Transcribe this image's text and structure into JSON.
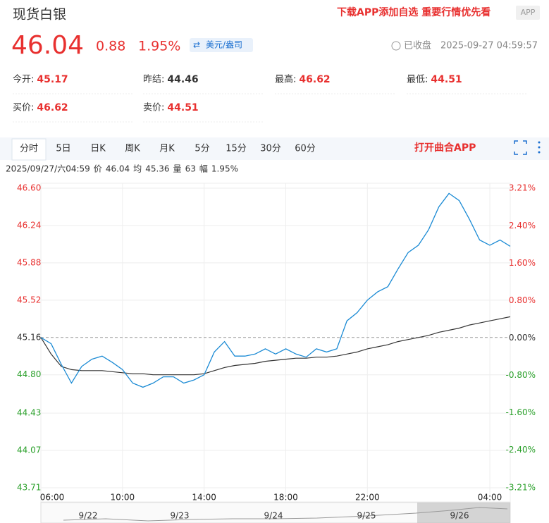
{
  "header": {
    "title": "现货白银",
    "price": "46.04",
    "change": "0.88",
    "change_pct": "1.95%",
    "unit": "美元/盎司",
    "status": "已收盘",
    "time": "2025-09-27 04:59:57",
    "promo": "下载APP添加自选 重要行情优先看",
    "app_tag": "APP"
  },
  "stats": [
    {
      "label": "今开:",
      "value": "45.17"
    },
    {
      "label": "昨结:",
      "value": "44.46"
    },
    {
      "label": "最高:",
      "value": "46.62"
    },
    {
      "label": "最低:",
      "value": "44.51"
    },
    {
      "label": "买价:",
      "value": "46.62"
    },
    {
      "label": "卖价:",
      "value": "44.51"
    }
  ],
  "tabs": [
    "分时",
    "5日",
    "日K",
    "周K",
    "月K",
    "5分",
    "15分",
    "30分",
    "60分"
  ],
  "open_app": "打开曲合APP",
  "info": {
    "time": "2025/09/27/六04:59",
    "price_label": "价",
    "price": "46.04",
    "avg_label": "均",
    "avg": "45.36",
    "vol_label": "量",
    "vol": "63",
    "pct_label": "幅",
    "pct": "1.95%"
  },
  "navigator": {
    "dates": [
      "9/22",
      "9/23",
      "9/24",
      "9/25",
      "9/26"
    ]
  },
  "chart_data": {
    "type": "line",
    "x": [
      "06:00",
      "06:30",
      "07:00",
      "07:30",
      "08:00",
      "08:30",
      "09:00",
      "09:30",
      "10:00",
      "10:30",
      "11:00",
      "11:30",
      "12:00",
      "12:30",
      "13:00",
      "13:30",
      "14:00",
      "14:30",
      "15:00",
      "15:30",
      "16:00",
      "16:30",
      "17:00",
      "17:30",
      "18:00",
      "18:30",
      "19:00",
      "19:30",
      "20:00",
      "20:30",
      "21:00",
      "21:30",
      "22:00",
      "22:30",
      "23:00",
      "23:30",
      "00:00",
      "00:30",
      "01:00",
      "01:30",
      "02:00",
      "02:30",
      "03:00",
      "03:30",
      "04:00",
      "04:30",
      "05:00"
    ],
    "series": [
      {
        "name": "价",
        "color": "#1a8ad4",
        "values": [
          45.16,
          45.1,
          44.9,
          44.72,
          44.88,
          44.95,
          44.98,
          44.92,
          44.85,
          44.72,
          44.68,
          44.72,
          44.78,
          44.78,
          44.72,
          44.75,
          44.8,
          45.02,
          45.12,
          44.98,
          44.98,
          45.0,
          45.05,
          45.0,
          45.05,
          45.0,
          44.97,
          45.05,
          45.02,
          45.05,
          45.32,
          45.4,
          45.52,
          45.6,
          45.65,
          45.82,
          45.98,
          46.05,
          46.2,
          46.42,
          46.55,
          46.48,
          46.3,
          46.1,
          46.05,
          46.1,
          46.04
        ]
      },
      {
        "name": "均",
        "color": "#333333",
        "values": [
          45.16,
          45.0,
          44.88,
          44.85,
          44.84,
          44.84,
          44.84,
          44.83,
          44.82,
          44.81,
          44.81,
          44.8,
          44.8,
          44.8,
          44.8,
          44.8,
          44.81,
          44.84,
          44.87,
          44.89,
          44.9,
          44.91,
          44.93,
          44.94,
          44.95,
          44.96,
          44.96,
          44.97,
          44.97,
          44.98,
          45.0,
          45.02,
          45.05,
          45.07,
          45.09,
          45.12,
          45.14,
          45.16,
          45.18,
          45.21,
          45.23,
          45.25,
          45.28,
          45.3,
          45.32,
          45.34,
          45.36
        ]
      }
    ],
    "xticks": [
      {
        "value": 0,
        "label": "06:00"
      },
      {
        "value": 8,
        "label": "10:00"
      },
      {
        "value": 16,
        "label": "14:00"
      },
      {
        "value": 24,
        "label": "18:00"
      },
      {
        "value": 32,
        "label": "22:00"
      },
      {
        "value": 44,
        "label": "04:00"
      }
    ],
    "ylim": [
      43.71,
      46.6
    ],
    "yticks": [
      43.71,
      44.07,
      44.43,
      {
        "value": 44.8,
        "label": "44.80"
      },
      45.16,
      45.52,
      45.88,
      46.24,
      {
        "value": 46.6,
        "label": "46.60"
      }
    ],
    "y2lim": [
      -3.21,
      3.21
    ],
    "y2ticks": [
      {
        "value": -3.21,
        "label": "-3.21%"
      },
      {
        "value": -2.4,
        "label": "-2.40%"
      },
      {
        "value": -1.6,
        "label": "-1.60%"
      },
      {
        "value": -0.8,
        "label": "-0.80%"
      },
      {
        "value": 0,
        "label": "0.00%"
      },
      {
        "value": 0.8,
        "label": "0.80%"
      },
      {
        "value": 1.6,
        "label": "1.60%"
      },
      {
        "value": 2.4,
        "label": "2.40%"
      },
      {
        "value": 3.21,
        "label": "3.21%"
      }
    ],
    "grid": true
  }
}
